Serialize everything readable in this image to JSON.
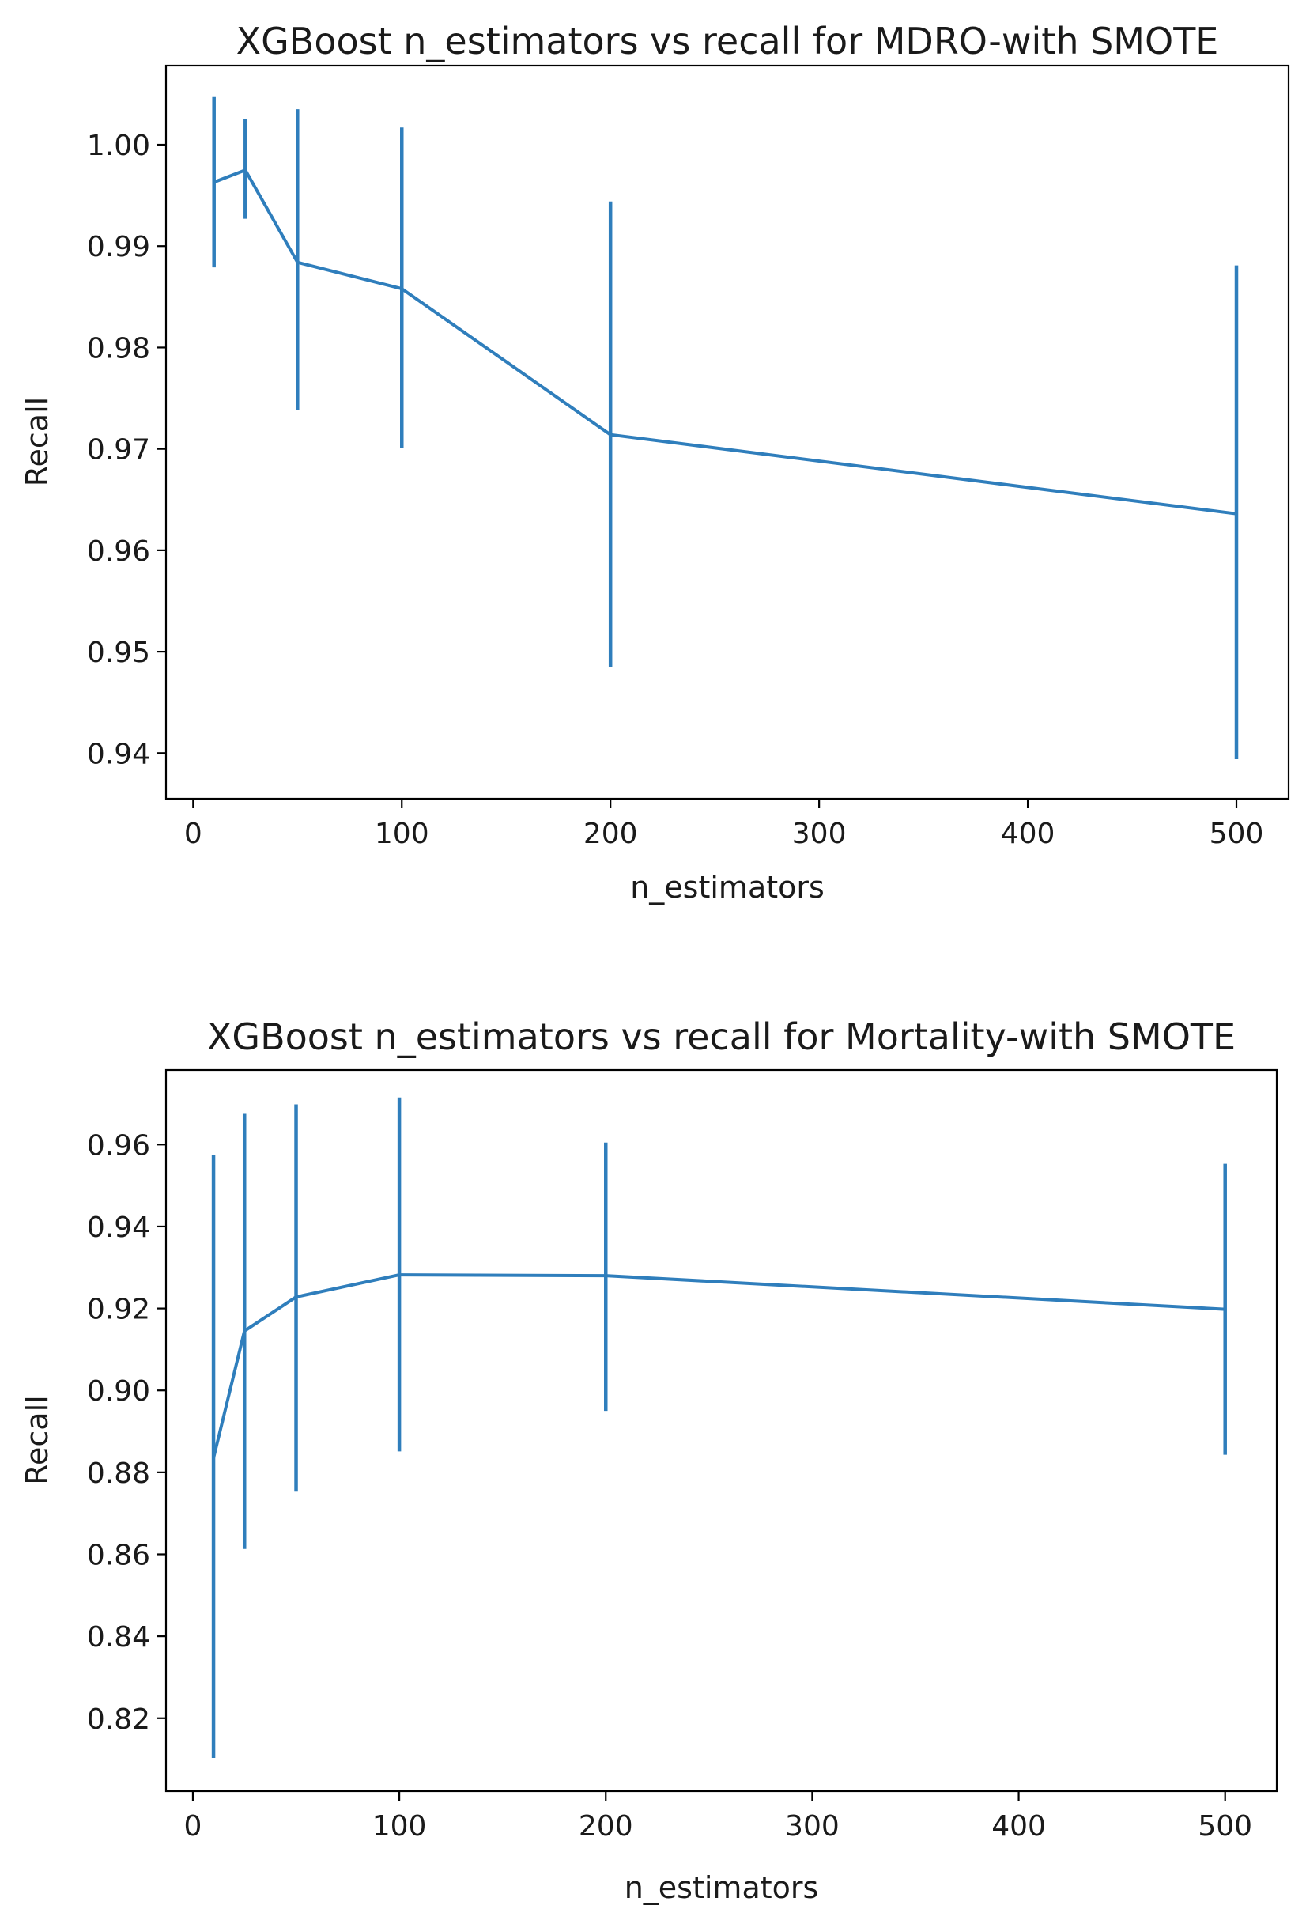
{
  "chart_data": [
    {
      "type": "line",
      "title": "XGBoost n_estimators vs recall for MDRO-with SMOTE",
      "xlabel": "n_estimators",
      "ylabel": "Recall",
      "xlim": [
        -13,
        525
      ],
      "ylim": [
        0.9355,
        1.0078
      ],
      "xticks": [
        0,
        100,
        200,
        300,
        400,
        500
      ],
      "yticks": [
        0.94,
        0.95,
        0.96,
        0.97,
        0.98,
        0.99,
        1.0
      ],
      "ytick_labels": [
        "0.94",
        "0.95",
        "0.96",
        "0.97",
        "0.98",
        "0.99",
        "1.00"
      ],
      "grid": false,
      "series": [
        {
          "name": "recall",
          "color": "#2f7ebc",
          "x": [
            10,
            25,
            50,
            100,
            200,
            500
          ],
          "y": [
            0.9963,
            0.9975,
            0.9884,
            0.9858,
            0.9714,
            0.9636
          ],
          "err_low": [
            0.9879,
            0.9927,
            0.9738,
            0.9701,
            0.9485,
            0.9394
          ],
          "err_high": [
            1.0047,
            1.0025,
            1.0035,
            1.0017,
            0.9944,
            0.9881
          ]
        }
      ]
    },
    {
      "type": "line",
      "title": "XGBoost n_estimators vs recall for Mortality-with SMOTE",
      "xlabel": "n_estimators",
      "ylabel": "Recall",
      "xlim": [
        -13,
        525
      ],
      "ylim": [
        0.8022,
        0.9782
      ],
      "xticks": [
        0,
        100,
        200,
        300,
        400,
        500
      ],
      "yticks": [
        0.82,
        0.84,
        0.86,
        0.88,
        0.9,
        0.92,
        0.94,
        0.96
      ],
      "ytick_labels": [
        "0.82",
        "0.84",
        "0.86",
        "0.88",
        "0.90",
        "0.92",
        "0.94",
        "0.96"
      ],
      "grid": false,
      "series": [
        {
          "name": "recall",
          "color": "#2f7ebc",
          "x": [
            10,
            25,
            50,
            100,
            200,
            500
          ],
          "y": [
            0.8835,
            0.9145,
            0.9228,
            0.9282,
            0.928,
            0.9198
          ],
          "err_low": [
            0.8103,
            0.8613,
            0.8753,
            0.8851,
            0.895,
            0.8843
          ],
          "err_high": [
            0.9575,
            0.9675,
            0.9698,
            0.9715,
            0.9605,
            0.9553
          ]
        }
      ]
    }
  ]
}
